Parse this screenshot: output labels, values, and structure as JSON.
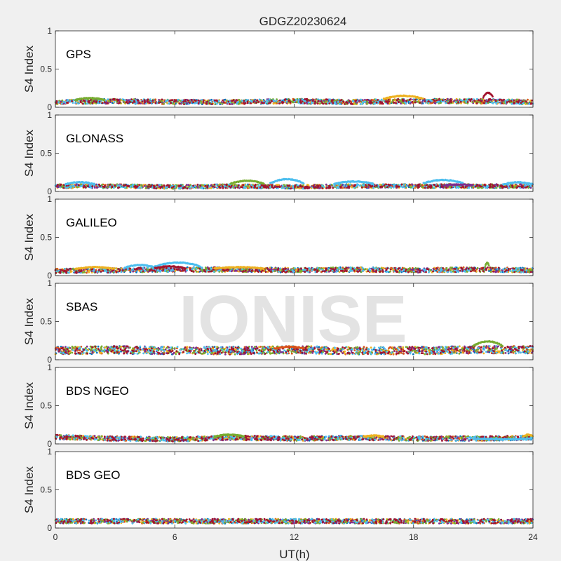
{
  "figure": {
    "title": "GDGZ20230624",
    "watermark": "IONISE",
    "xlabel": "UT(h)",
    "ylabel": "S4 Index",
    "xlim": [
      0,
      24
    ],
    "ylim": [
      0,
      1
    ],
    "xticks": [
      "0",
      "6",
      "12",
      "18",
      "24"
    ],
    "yticks": [
      "0",
      "0.5",
      "1"
    ]
  },
  "series_colors": [
    "#0072BD",
    "#D95319",
    "#EDB120",
    "#7E2F8E",
    "#77AC30",
    "#4DBEEE",
    "#A2142F"
  ],
  "chart_data": [
    {
      "type": "scatter",
      "panel": "GPS",
      "xlim": [
        0,
        24
      ],
      "ylim": [
        0,
        1
      ],
      "baseline": [
        [
          0,
          0.07
        ],
        [
          3,
          0.08
        ],
        [
          6,
          0.07
        ],
        [
          9,
          0.07
        ],
        [
          12,
          0.08
        ],
        [
          15,
          0.07
        ],
        [
          18,
          0.08
        ],
        [
          21,
          0.08
        ],
        [
          24,
          0.07
        ]
      ],
      "spread": 0.03,
      "arcs": [
        {
          "series": 4,
          "x": [
            1.0,
            2.5
          ],
          "y": 0.12
        },
        {
          "series": 2,
          "x": [
            16.5,
            18.5
          ],
          "y": 0.15
        },
        {
          "series": 6,
          "x": [
            21.5,
            22.0
          ],
          "y": 0.19
        }
      ]
    },
    {
      "type": "scatter",
      "panel": "GLONASS",
      "xlim": [
        0,
        24
      ],
      "ylim": [
        0,
        1
      ],
      "baseline": [
        [
          0,
          0.07
        ],
        [
          3,
          0.07
        ],
        [
          6,
          0.06
        ],
        [
          9,
          0.07
        ],
        [
          12,
          0.06
        ],
        [
          15,
          0.07
        ],
        [
          18,
          0.07
        ],
        [
          21,
          0.07
        ],
        [
          24,
          0.07
        ]
      ],
      "spread": 0.025,
      "arcs": [
        {
          "series": 5,
          "x": [
            0.5,
            2.0
          ],
          "y": 0.12
        },
        {
          "series": 4,
          "x": [
            8.8,
            10.5
          ],
          "y": 0.14
        },
        {
          "series": 5,
          "x": [
            10.8,
            12.5
          ],
          "y": 0.16
        },
        {
          "series": 5,
          "x": [
            14.0,
            16.0
          ],
          "y": 0.13
        },
        {
          "series": 5,
          "x": [
            18.5,
            20.5
          ],
          "y": 0.15
        },
        {
          "series": 5,
          "x": [
            22.5,
            24.0
          ],
          "y": 0.12
        },
        {
          "series": 3,
          "x": [
            19.5,
            21.0
          ],
          "y": 0.09
        }
      ]
    },
    {
      "type": "scatter",
      "panel": "GALILEO",
      "xlim": [
        0,
        24
      ],
      "ylim": [
        0,
        1
      ],
      "baseline": [
        [
          0,
          0.06
        ],
        [
          3,
          0.07
        ],
        [
          6,
          0.08
        ],
        [
          9,
          0.08
        ],
        [
          12,
          0.07
        ],
        [
          15,
          0.08
        ],
        [
          18,
          0.07
        ],
        [
          21,
          0.08
        ],
        [
          24,
          0.07
        ]
      ],
      "spread": 0.03,
      "arcs": [
        {
          "series": 2,
          "x": [
            1.0,
            3.0
          ],
          "y": 0.11
        },
        {
          "series": 5,
          "x": [
            3.5,
            5.0
          ],
          "y": 0.14
        },
        {
          "series": 5,
          "x": [
            5.0,
            7.3
          ],
          "y": 0.17
        },
        {
          "series": 6,
          "x": [
            5.0,
            6.5
          ],
          "y": 0.12
        },
        {
          "series": 2,
          "x": [
            8.0,
            10.5
          ],
          "y": 0.11
        },
        {
          "series": 4,
          "x": [
            21.6,
            21.8
          ],
          "y": 0.17
        }
      ]
    },
    {
      "type": "scatter",
      "panel": "SBAS",
      "xlim": [
        0,
        24
      ],
      "ylim": [
        0,
        1
      ],
      "baseline": [
        [
          0,
          0.12
        ],
        [
          3,
          0.13
        ],
        [
          6,
          0.12
        ],
        [
          9,
          0.12
        ],
        [
          12,
          0.13
        ],
        [
          15,
          0.12
        ],
        [
          18,
          0.12
        ],
        [
          21,
          0.13
        ],
        [
          24,
          0.13
        ]
      ],
      "spread": 0.05,
      "arcs": [
        {
          "series": 4,
          "x": [
            21.0,
            22.5
          ],
          "y": 0.24
        },
        {
          "series": 1,
          "x": [
            11.0,
            12.5
          ],
          "y": 0.17
        }
      ]
    },
    {
      "type": "scatter",
      "panel": "BDS NGEO",
      "xlim": [
        0,
        24
      ],
      "ylim": [
        0,
        1
      ],
      "baseline": [
        [
          0,
          0.09
        ],
        [
          3,
          0.07
        ],
        [
          6,
          0.06
        ],
        [
          9,
          0.08
        ],
        [
          12,
          0.07
        ],
        [
          15,
          0.08
        ],
        [
          18,
          0.07
        ],
        [
          21,
          0.07
        ],
        [
          24,
          0.08
        ]
      ],
      "spread": 0.03,
      "arcs": [
        {
          "series": 4,
          "x": [
            8.0,
            9.5
          ],
          "y": 0.12
        },
        {
          "series": 2,
          "x": [
            15.5,
            16.5
          ],
          "y": 0.11
        },
        {
          "series": 2,
          "x": [
            23.5,
            24.0
          ],
          "y": 0.12
        },
        {
          "series": 5,
          "x": [
            21.0,
            24.0
          ],
          "y": 0.06
        }
      ]
    },
    {
      "type": "scatter",
      "panel": "BDS GEO",
      "xlim": [
        0,
        24
      ],
      "ylim": [
        0,
        1
      ],
      "baseline": [
        [
          0,
          0.09
        ],
        [
          6,
          0.09
        ],
        [
          12,
          0.09
        ],
        [
          18,
          0.09
        ],
        [
          24,
          0.09
        ]
      ],
      "spread": 0.03,
      "arcs": []
    }
  ]
}
